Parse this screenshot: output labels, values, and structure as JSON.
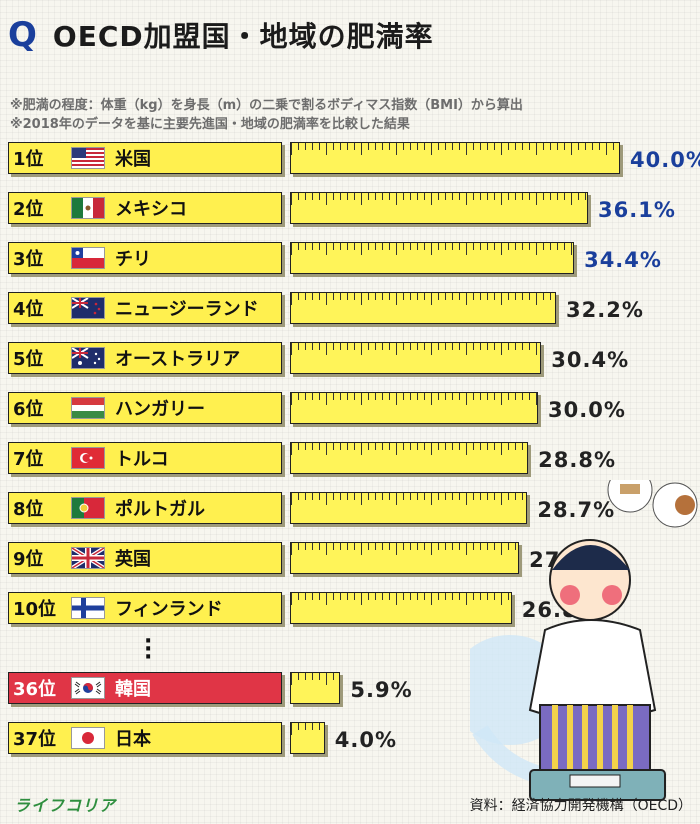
{
  "header": {
    "q_label": "Q",
    "title": "OECD加盟国・地域の肥満率"
  },
  "notes": [
    "※肥満の程度：体重（kg）を身長（m）の二乗で割るボディマス指数（BMI）から算出",
    "※2018年のデータを基に主要先進国・地域の肥満率を比較した結果"
  ],
  "chart_data": {
    "type": "bar",
    "title": "OECD加盟国・地域の肥満率",
    "categories": [
      "米国",
      "メキシコ",
      "チリ",
      "ニュージーランド",
      "オーストラリア",
      "ハンガリー",
      "トルコ",
      "ポルトガル",
      "英国",
      "フィンランド",
      "韓国",
      "日本"
    ],
    "ranks": [
      "1位",
      "2位",
      "3位",
      "4位",
      "5位",
      "6位",
      "7位",
      "8位",
      "9位",
      "10位",
      "36位",
      "37位"
    ],
    "values": [
      40.0,
      36.1,
      34.4,
      32.2,
      30.4,
      30.0,
      28.8,
      28.7,
      27.7,
      26.8,
      5.9,
      4.0
    ],
    "value_labels": [
      "40.0%",
      "36.1%",
      "34.4%",
      "32.2%",
      "30.4%",
      "30.0%",
      "28.8%",
      "28.7%",
      "27.7%",
      "26.8%",
      "5.9%",
      "4.0%"
    ],
    "unit": "%",
    "highlight": "韓国",
    "flags": [
      "us-flag-icon",
      "mexico-flag-icon",
      "chile-flag-icon",
      "new-zealand-flag-icon",
      "australia-flag-icon",
      "hungary-flag-icon",
      "turkey-flag-icon",
      "portugal-flag-icon",
      "uk-flag-icon",
      "finland-flag-icon",
      "korea-flag-icon",
      "japan-flag-icon"
    ],
    "colors": {
      "bar": "#fff459",
      "label": "#fff04f",
      "highlight": "#e03546",
      "top_values": "#1a3f9c"
    }
  },
  "footer": {
    "logo": "ライフコリア",
    "source": "資料：経済協力開発機構（OECD）"
  }
}
